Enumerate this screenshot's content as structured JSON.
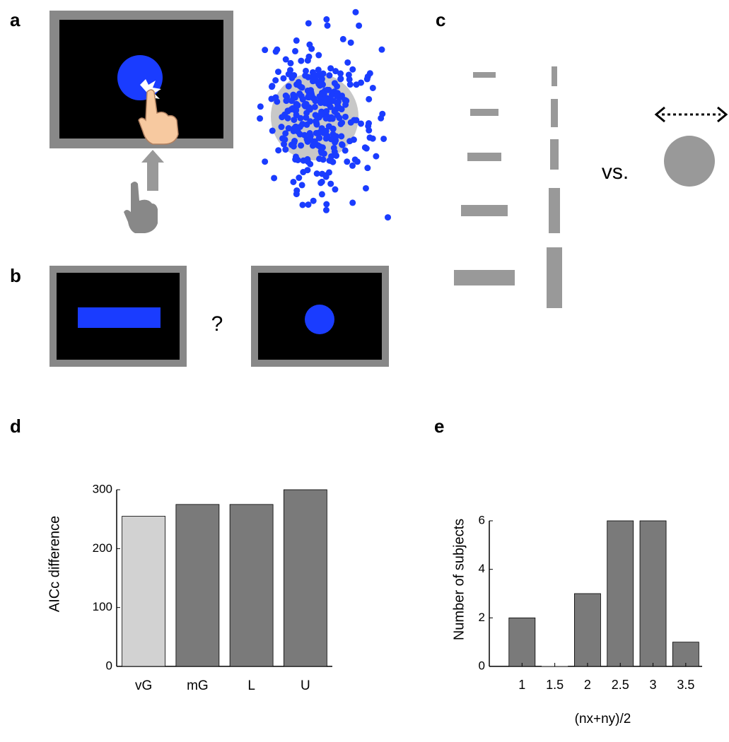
{
  "panels": {
    "labels": [
      "a",
      "b",
      "c",
      "d",
      "e"
    ],
    "question": "?",
    "vs": "vs."
  },
  "chart_data": [
    {
      "type": "bar",
      "categories": [
        "vG",
        "mG",
        "L",
        "U"
      ],
      "values": [
        255,
        275,
        275,
        300
      ],
      "colors": [
        "#d2d2d2",
        "#7a7a7a",
        "#7a7a7a",
        "#7a7a7a"
      ],
      "ylabel": "AICc difference",
      "ylim": [
        0,
        300
      ],
      "yticks": [
        0,
        100,
        200,
        300
      ]
    },
    {
      "type": "histogram",
      "x": [
        1,
        1.5,
        2,
        2.5,
        3,
        3.5
      ],
      "values": [
        2,
        0,
        3,
        6,
        6,
        1
      ],
      "color": "#7a7a7a",
      "xlabel": "(nx+ny)/2",
      "ylabel": "Number of subjects",
      "xlim": [
        0.5,
        3.75
      ],
      "xticks": [
        1,
        1.5,
        2,
        2.5,
        3,
        3.5
      ],
      "ylim": [
        0,
        6
      ],
      "yticks": [
        0,
        2,
        4,
        6
      ]
    }
  ]
}
